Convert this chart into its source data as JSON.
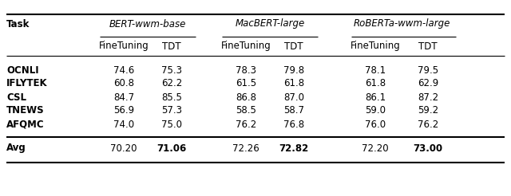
{
  "group_labels": [
    "BERT-wwm-base",
    "MacBERT-large",
    "RoBERTa-wwm-large"
  ],
  "sub_labels": [
    "FineTuning",
    "TDT",
    "FineTuning",
    "TDT",
    "FineTuning",
    "TDT"
  ],
  "tasks": [
    "OCNLI",
    "IFLYTEK",
    "CSL",
    "TNEWS",
    "AFQMC"
  ],
  "avg_label": "Avg",
  "avg_values": [
    "70.20",
    "71.06",
    "72.26",
    "72.82",
    "72.20",
    "73.00"
  ],
  "avg_bold": [
    false,
    true,
    false,
    true,
    false,
    true
  ],
  "task_values": {
    "OCNLI": [
      "74.6",
      "75.3",
      "78.3",
      "79.8",
      "78.1",
      "79.5"
    ],
    "IFLYTEK": [
      "60.8",
      "62.2",
      "61.5",
      "61.8",
      "61.8",
      "62.9"
    ],
    "CSL": [
      "84.7",
      "85.5",
      "86.8",
      "87.0",
      "86.1",
      "87.2"
    ],
    "TNEWS": [
      "56.9",
      "57.3",
      "58.5",
      "58.7",
      "59.0",
      "59.2"
    ],
    "AFQMC": [
      "74.0",
      "75.0",
      "76.2",
      "76.8",
      "76.0",
      "76.2"
    ]
  },
  "figsize": [
    6.4,
    2.46
  ],
  "dpi": 100,
  "fs": 8.5,
  "bg_color": "white",
  "text_color": "black"
}
